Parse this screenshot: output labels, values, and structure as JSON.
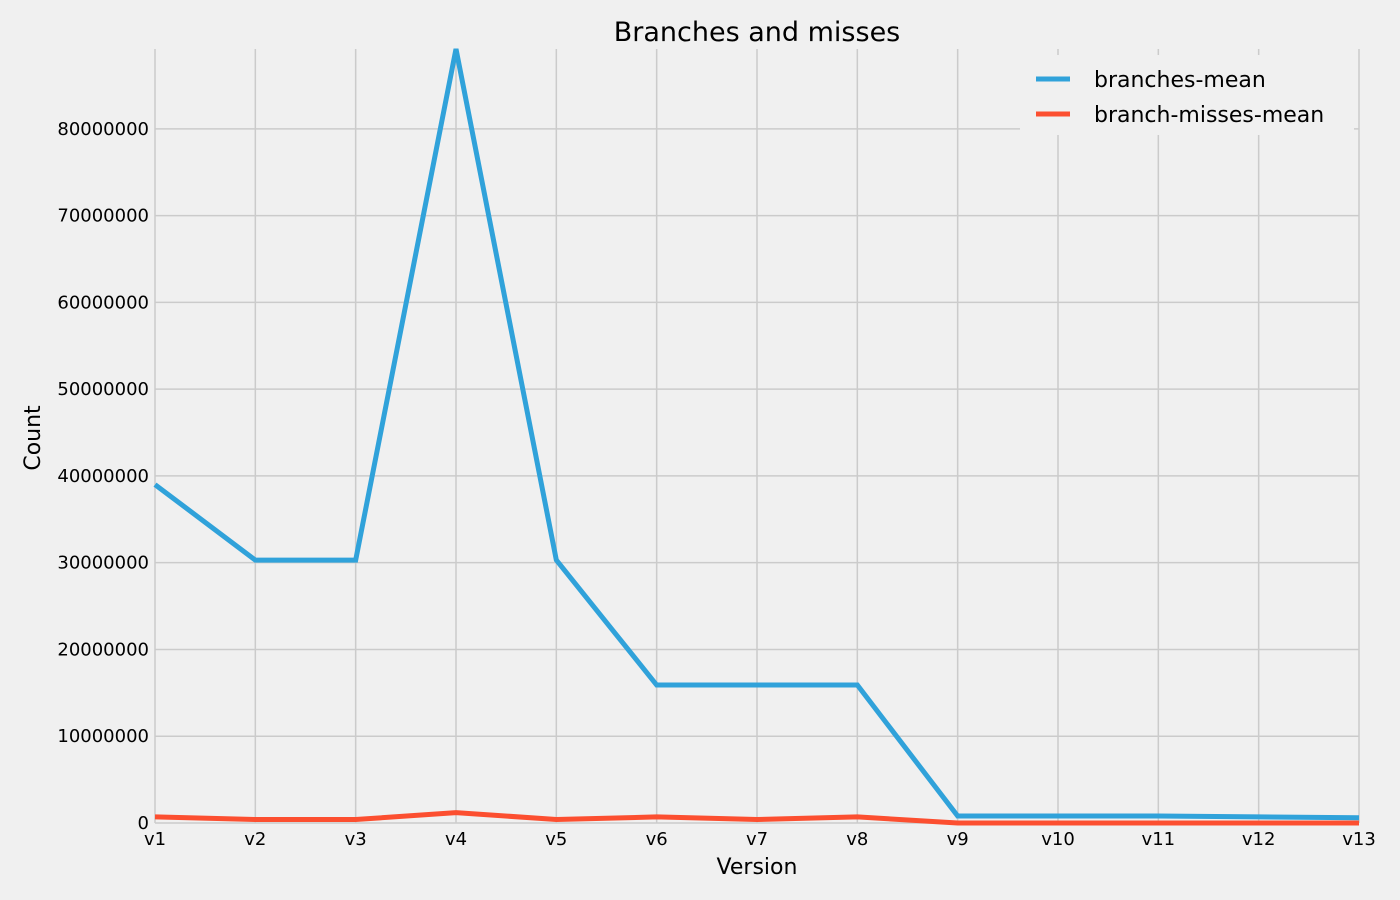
{
  "chart_data": {
    "type": "line",
    "title": "Branches and misses",
    "xlabel": "Version",
    "ylabel": "Count",
    "categories": [
      "v1",
      "v2",
      "v3",
      "v4",
      "v5",
      "v6",
      "v7",
      "v8",
      "v9",
      "v10",
      "v11",
      "v12",
      "v13"
    ],
    "ylim": [
      0,
      89200000
    ],
    "yticks": [
      0,
      10000000,
      20000000,
      30000000,
      40000000,
      50000000,
      60000000,
      70000000,
      80000000
    ],
    "ytick_labels": [
      "0",
      "10000000",
      "20000000",
      "30000000",
      "40000000",
      "50000000",
      "60000000",
      "70000000",
      "80000000"
    ],
    "grid": true,
    "legend_position": "top-right",
    "series": [
      {
        "name": "branches-mean",
        "color": "#30a2da",
        "values": [
          39000000,
          30300000,
          30300000,
          89200000,
          30300000,
          15900000,
          15900000,
          15900000,
          800000,
          800000,
          800000,
          700000,
          600000
        ]
      },
      {
        "name": "branch-misses-mean",
        "color": "#fc4f30",
        "values": [
          700000,
          400000,
          400000,
          1200000,
          400000,
          700000,
          400000,
          700000,
          0,
          0,
          0,
          0,
          0
        ]
      }
    ]
  }
}
